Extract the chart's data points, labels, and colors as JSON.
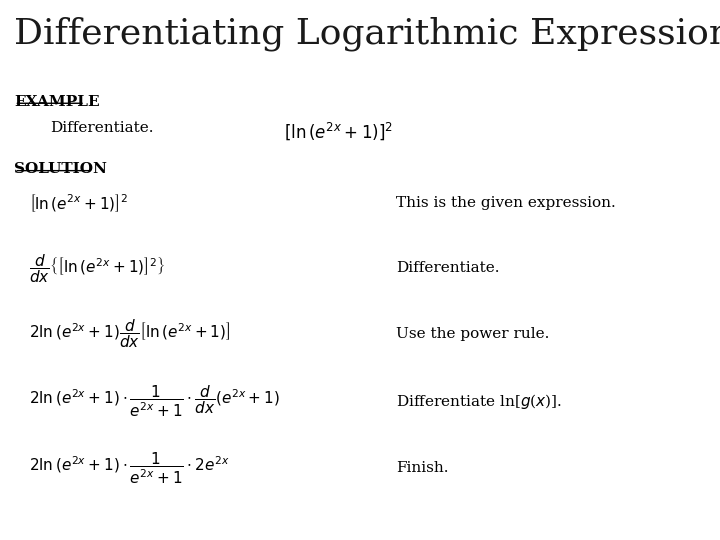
{
  "title": "Differentiating Logarithmic Expressions",
  "title_fontsize": 26,
  "title_color": "#1a1a1a",
  "title_bg_color": "#ffffcc",
  "red_bar_color": "#8B0000",
  "body_bg_color": "#ffffff",
  "example_label": "EXAMPLE",
  "differentiate_text": "Differentiate.",
  "solution_label": "SOLUTION",
  "example_expr": "$\\left[\\ln\\left(e^{2x}+1\\right)\\right]^2$",
  "rows": [
    {
      "latex": "$\\left[\\ln\\left(e^{2x}+1\\right)\\right]^2$",
      "description": "This is the given expression."
    },
    {
      "latex": "$\\dfrac{d}{dx}\\left\\{\\left[\\ln\\left(e^{2x}+1\\right)\\right]^2\\right\\}$",
      "description": "Differentiate."
    },
    {
      "latex": "$2\\ln\\left(e^{2x}+1\\right)\\dfrac{d}{dx}\\left[\\ln\\left(e^{2x}+1\\right)\\right]$",
      "description": "Use the power rule."
    },
    {
      "latex": "$2\\ln\\left(e^{2x}+1\\right)\\cdot\\dfrac{1}{e^{2x}+1}\\cdot\\dfrac{d}{dx}\\left(e^{2x}+1\\right)$",
      "description": "Differentiate ln[$g$($x$)]."
    },
    {
      "latex": "$2\\ln\\left(e^{2x}+1\\right)\\cdot\\dfrac{1}{e^{2x}+1}\\cdot 2e^{2x}$",
      "description": "Finish."
    }
  ]
}
